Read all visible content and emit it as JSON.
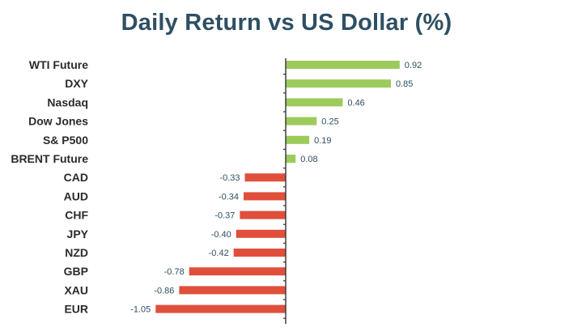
{
  "chart_data": {
    "type": "bar",
    "orientation": "horizontal",
    "title": "Daily Return vs US Dollar (%)",
    "categories": [
      "WTI Future",
      "DXY",
      "Nasdaq",
      "Dow Jones",
      "S& P500",
      "BRENT Future",
      "CAD",
      "AUD",
      "CHF",
      "JPY",
      "NZD",
      "GBP",
      "XAU",
      "EUR"
    ],
    "values": [
      0.92,
      0.85,
      0.46,
      0.25,
      0.19,
      0.08,
      -0.33,
      -0.34,
      -0.37,
      -0.4,
      -0.42,
      -0.78,
      -0.86,
      -1.05
    ],
    "value_labels": [
      "0.92",
      "0.85",
      "0.46",
      "0.25",
      "0.19",
      "0.08",
      "-0.33",
      "-0.34",
      "-0.37",
      "-0.40",
      "-0.42",
      "-0.78",
      "-0.86",
      "-1.05"
    ],
    "xlabel": "",
    "ylabel": "",
    "grid": false,
    "legend": "none",
    "colors": {
      "positive": "#9ccb5c",
      "negative": "#e04f3c",
      "title": "#2e4f63",
      "axis": "#333333"
    }
  }
}
